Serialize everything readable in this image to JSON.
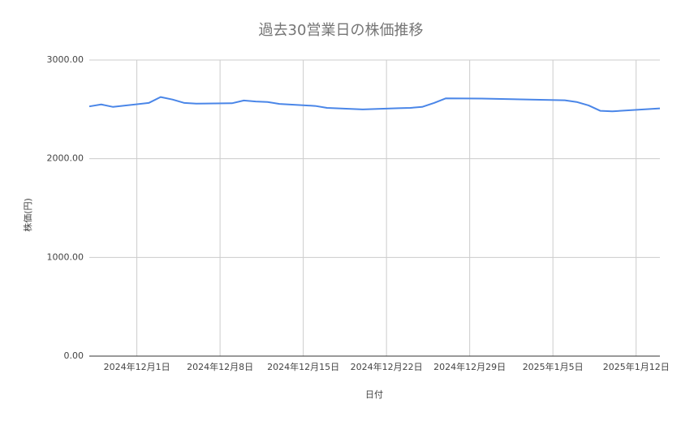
{
  "chart_data": {
    "type": "line",
    "title": "過去30営業日の株価推移",
    "x_label": "日付",
    "y_label": "株価(円)",
    "x": [
      "2024-11-27",
      "2024-11-28",
      "2024-11-29",
      "2024-12-02",
      "2024-12-03",
      "2024-12-04",
      "2024-12-05",
      "2024-12-06",
      "2024-12-09",
      "2024-12-10",
      "2024-12-11",
      "2024-12-12",
      "2024-12-13",
      "2024-12-16",
      "2024-12-17",
      "2024-12-18",
      "2024-12-19",
      "2024-12-20",
      "2024-12-23",
      "2024-12-24",
      "2024-12-25",
      "2024-12-26",
      "2024-12-27",
      "2024-12-30",
      "2025-01-06",
      "2025-01-07",
      "2025-01-08",
      "2025-01-09",
      "2025-01-10",
      "2025-01-14"
    ],
    "series": [
      {
        "name": "株価",
        "color": "#4a86e8",
        "values": [
          2530,
          2550,
          2525,
          2565,
          2625,
          2600,
          2565,
          2558,
          2562,
          2590,
          2580,
          2575,
          2555,
          2535,
          2515,
          2510,
          2505,
          2500,
          2512,
          2515,
          2525,
          2565,
          2612,
          2610,
          2592,
          2575,
          2540,
          2485,
          2480,
          2510
        ]
      }
    ],
    "xlim": [
      "2024-11-27",
      "2025-01-14"
    ],
    "xticks": [
      {
        "value": "2024-12-01",
        "label": "2024年12月1日"
      },
      {
        "value": "2024-12-08",
        "label": "2024年12月8日"
      },
      {
        "value": "2024-12-15",
        "label": "2024年12月15日"
      },
      {
        "value": "2024-12-22",
        "label": "2024年12月22日"
      },
      {
        "value": "2024-12-29",
        "label": "2024年12月29日"
      },
      {
        "value": "2025-01-05",
        "label": "2025年1月5日"
      },
      {
        "value": "2025-01-12",
        "label": "2025年1月12日"
      }
    ],
    "ylim": [
      0,
      3000
    ],
    "yticks": [
      {
        "value": 0,
        "label": "0.00"
      },
      {
        "value": 1000,
        "label": "1000.00"
      },
      {
        "value": 2000,
        "label": "2000.00"
      },
      {
        "value": 3000,
        "label": "3000.00"
      }
    ],
    "grid": true
  }
}
